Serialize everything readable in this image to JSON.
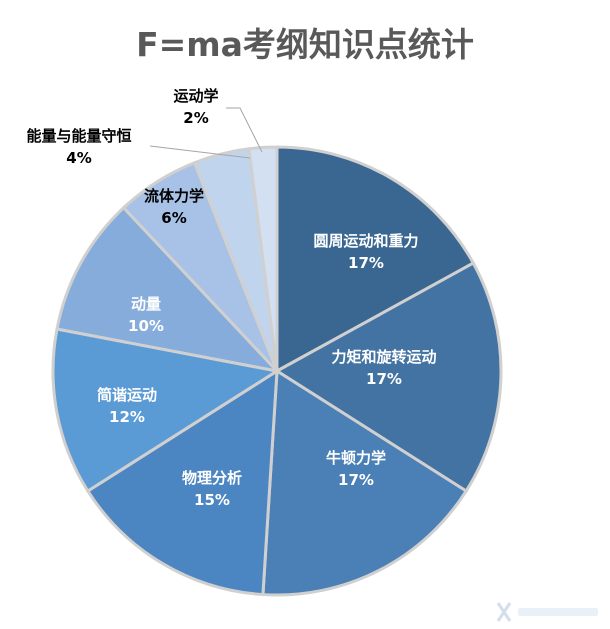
{
  "chart_data": {
    "type": "pie",
    "title": "F=ma考纲知识点统计",
    "slices": [
      {
        "label": "圆周运动和重力",
        "value": 17,
        "value_label": "17%",
        "color": "#3a6791"
      },
      {
        "label": "力矩和旋转运动",
        "value": 17,
        "value_label": "17%",
        "color": "#4273a2"
      },
      {
        "label": "牛顿力学",
        "value": 17,
        "value_label": "17%",
        "color": "#4a80b5"
      },
      {
        "label": "物理分析",
        "value": 15,
        "value_label": "15%",
        "color": "#4c86c2"
      },
      {
        "label": "简谐运动",
        "value": 12,
        "value_label": "12%",
        "color": "#5b9bd5"
      },
      {
        "label": "动量",
        "value": 10,
        "value_label": "10%",
        "color": "#86acdb"
      },
      {
        "label": "流体力学",
        "value": 6,
        "value_label": "6%",
        "color": "#a7c2e6"
      },
      {
        "label": "能量与能量守恒",
        "value": 4,
        "value_label": "4%",
        "color": "#c0d4ee"
      },
      {
        "label": "运动学",
        "value": 2,
        "value_label": "2%",
        "color": "#d3e0f2"
      }
    ],
    "start_angle_deg": 0,
    "direction": "clockwise",
    "legend": "none"
  }
}
